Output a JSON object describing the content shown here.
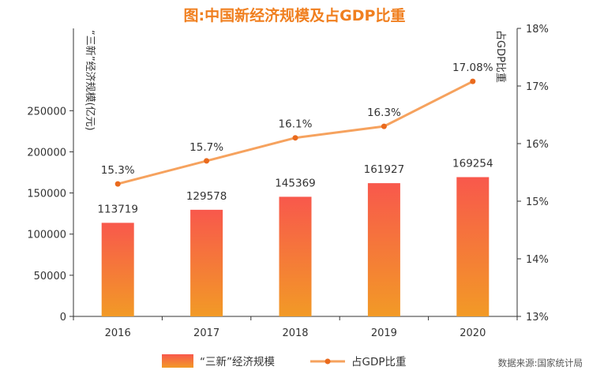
{
  "chart_data": {
    "type": "bar",
    "title": "图:中国新经济规模及占GDP比重",
    "categories": [
      "2016",
      "2017",
      "2018",
      "2019",
      "2020"
    ],
    "series": [
      {
        "name": "“三新”经济规模",
        "type": "bar",
        "axis": "left",
        "values": [
          113719,
          129578,
          145369,
          161927,
          169254
        ],
        "labels": [
          "113719",
          "129578",
          "145369",
          "161927",
          "169254"
        ]
      },
      {
        "name": "占GDP比重",
        "type": "line",
        "axis": "right",
        "values": [
          15.3,
          15.7,
          16.1,
          16.3,
          17.08
        ],
        "labels": [
          "15.3%",
          "15.7%",
          "16.1%",
          "16.3%",
          "17.08%"
        ]
      }
    ],
    "ylabel_left": "“三新”经济规模(亿元)",
    "ylabel_right": "占GDP比重",
    "ylim_left": [
      0,
      350000
    ],
    "yticks_left": [
      0,
      50000,
      100000,
      150000,
      200000,
      250000
    ],
    "ytick_labels_left": [
      "0",
      "50000",
      "100000",
      "150000",
      "200000",
      "250000"
    ],
    "ylim_right": [
      13,
      18
    ],
    "yticks_right": [
      13,
      14,
      15,
      16,
      17,
      18
    ],
    "ytick_labels_right": [
      "13%",
      "14%",
      "15%",
      "16%",
      "17%",
      "18%"
    ],
    "grid": false,
    "legend_position": "bottom",
    "source": "数据来源:国家统计局"
  },
  "colors": {
    "title": "#f07f1f",
    "bar_top": "#f8584c",
    "bar_bottom": "#f29a26",
    "line": "#f6a25e",
    "marker": "#ea6a1d",
    "axis": "#333333"
  }
}
